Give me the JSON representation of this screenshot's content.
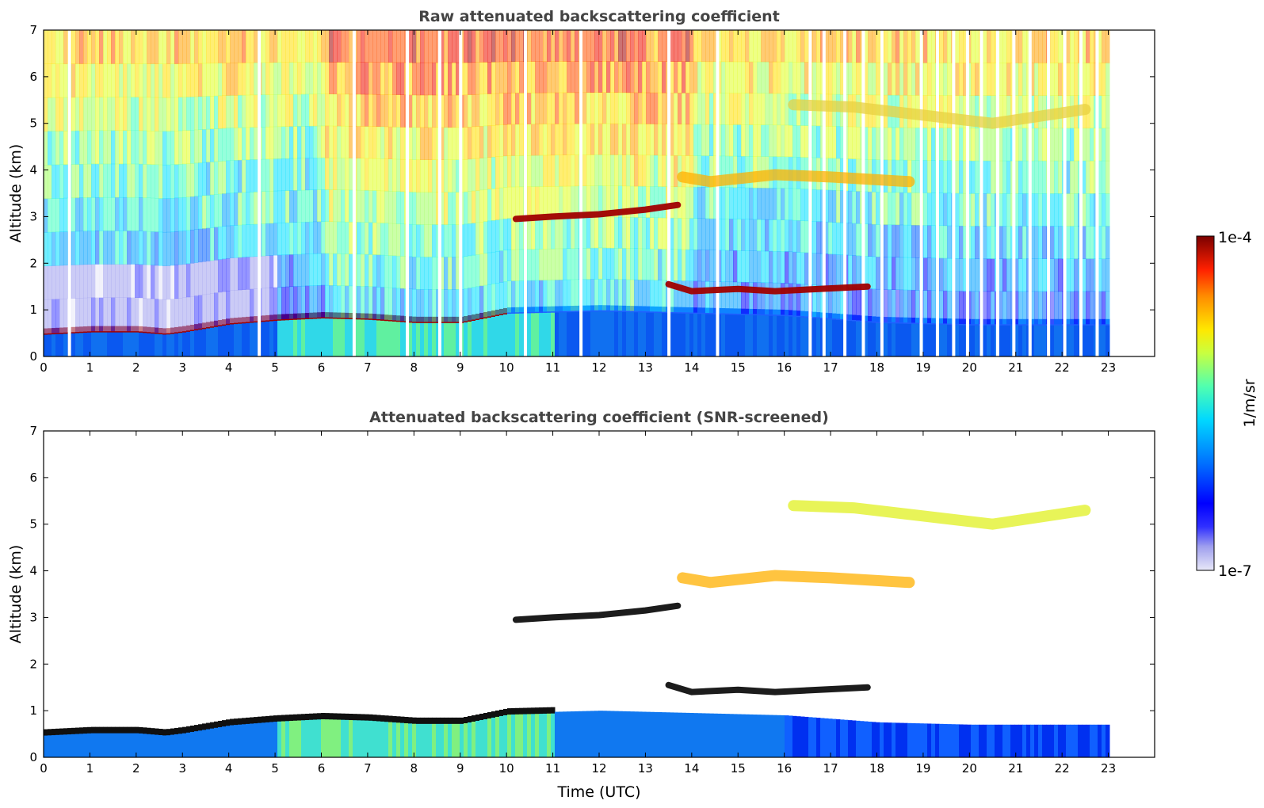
{
  "chart_data": [
    {
      "type": "heatmap",
      "title": "Raw attenuated backscattering coefficient",
      "xlabel": "",
      "ylabel": "Altitude (km)",
      "xlim": [
        0,
        24
      ],
      "ylim": [
        0,
        7
      ],
      "x_ticks": [
        "0",
        "1",
        "2",
        "3",
        "4",
        "5",
        "6",
        "7",
        "8",
        "9",
        "10",
        "11",
        "12",
        "13",
        "14",
        "15",
        "16",
        "17",
        "18",
        "19",
        "20",
        "21",
        "22",
        "23"
      ],
      "y_ticks": [
        "0",
        "1",
        "2",
        "3",
        "4",
        "5",
        "6",
        "7"
      ],
      "colormap": "jet",
      "data_extent_hours": [
        0,
        23.1
      ],
      "layers": [
        {
          "name": "boundary layer top",
          "points": [
            [
              0,
              0.5
            ],
            [
              1,
              0.55
            ],
            [
              2,
              0.55
            ],
            [
              2.6,
              0.5
            ],
            [
              3,
              0.55
            ],
            [
              4,
              0.72
            ],
            [
              5,
              0.8
            ],
            [
              6,
              0.85
            ],
            [
              7,
              0.82
            ],
            [
              8,
              0.75
            ],
            [
              9,
              0.75
            ],
            [
              9.5,
              0.85
            ],
            [
              10,
              0.95
            ]
          ]
        },
        {
          "name": "cloud 3 km",
          "points": [
            [
              10.2,
              2.95
            ],
            [
              11,
              3.0
            ],
            [
              12,
              3.05
            ],
            [
              13,
              3.15
            ],
            [
              13.7,
              3.25
            ]
          ]
        },
        {
          "name": "cloud 1.4 km",
          "points": [
            [
              13.5,
              1.55
            ],
            [
              14,
              1.4
            ],
            [
              15,
              1.45
            ],
            [
              15.8,
              1.4
            ],
            [
              17.8,
              1.5
            ]
          ]
        },
        {
          "name": "aerosol 3.8 km",
          "points": [
            [
              13.8,
              3.85
            ],
            [
              14.4,
              3.75
            ],
            [
              15.8,
              3.9
            ],
            [
              17,
              3.85
            ],
            [
              18.7,
              3.75
            ]
          ]
        },
        {
          "name": "aerosol 5.3 km",
          "points": [
            [
              16.2,
              5.4
            ],
            [
              17.5,
              5.35
            ],
            [
              20.5,
              5.0
            ],
            [
              22.5,
              5.3
            ]
          ]
        }
      ],
      "data_gaps_hours": [
        0.55,
        4.65,
        6.7,
        7.85,
        8.55,
        9.0,
        10.4,
        11.6,
        13.5,
        14.55,
        16.55,
        16.85,
        17.3,
        17.7,
        18.1,
        18.95,
        19.3,
        19.65,
        19.95,
        20.25,
        20.6,
        20.95,
        21.3,
        21.7,
        22.05,
        22.4,
        22.75
      ]
    },
    {
      "type": "heatmap",
      "title": "Attenuated backscattering coefficient (SNR-screened)",
      "xlabel": "Time (UTC)",
      "ylabel": "Altitude (km)",
      "xlim": [
        0,
        24
      ],
      "ylim": [
        0,
        7
      ],
      "x_ticks": [
        "0",
        "1",
        "2",
        "3",
        "4",
        "5",
        "6",
        "7",
        "8",
        "9",
        "10",
        "11",
        "12",
        "13",
        "14",
        "15",
        "16",
        "17",
        "18",
        "19",
        "20",
        "21",
        "22",
        "23"
      ],
      "y_ticks": [
        "0",
        "1",
        "2",
        "3",
        "4",
        "5",
        "6",
        "7"
      ],
      "colormap": "jet",
      "data_extent_hours": [
        0,
        23.1
      ]
    }
  ],
  "colorbar": {
    "label": "1/m/sr",
    "max_label": "1e-4",
    "min_label": "1e-7",
    "range": [
      1e-07,
      0.0001
    ],
    "colors": [
      "#e8e8f8",
      "#a0a0ee",
      "#4040ff",
      "#0000ff",
      "#0060ff",
      "#00a0ff",
      "#00e0ff",
      "#40ffc0",
      "#a0ff60",
      "#e0ff20",
      "#ffe000",
      "#ffa000",
      "#ff5000",
      "#ee1000",
      "#a00000",
      "#780000"
    ]
  }
}
